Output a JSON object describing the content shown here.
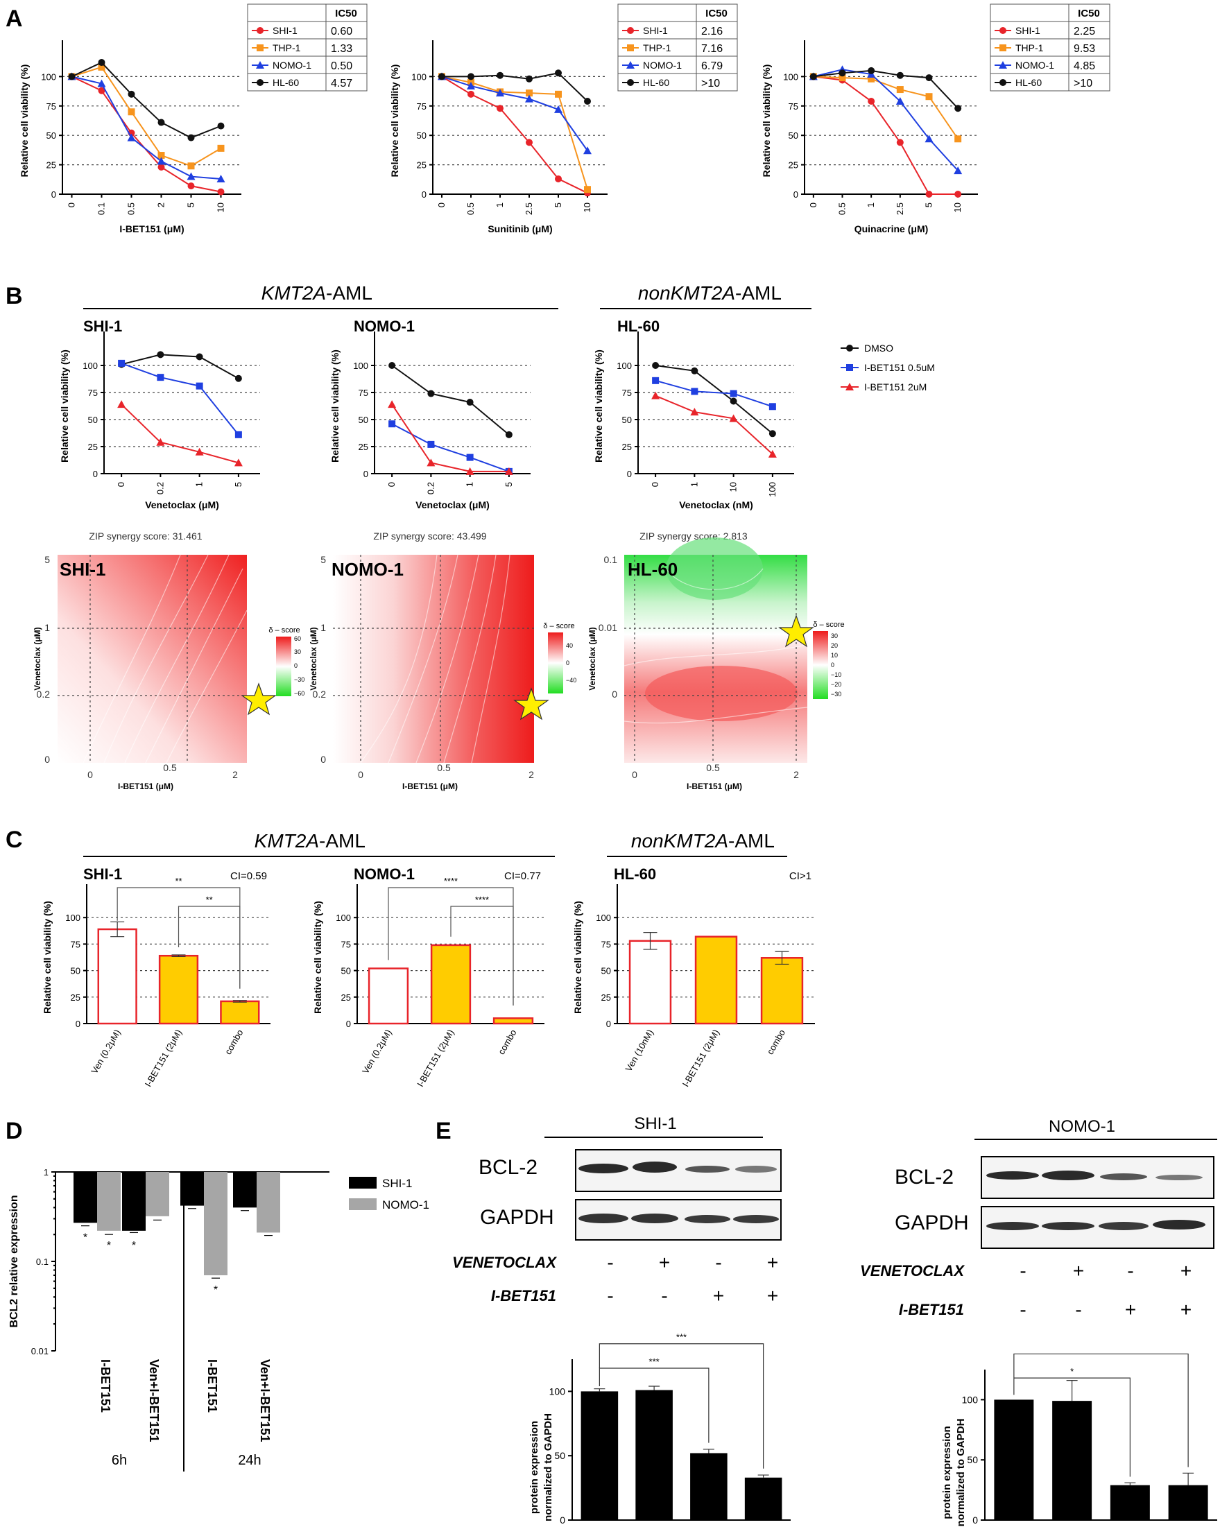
{
  "panels": {
    "a": "A",
    "b": "B",
    "c": "C",
    "d": "D",
    "e": "E"
  },
  "groups": {
    "kmt2a_pre": "KMT2A",
    "kmt2a_suf": "-AML",
    "non_pre": "nonKMT2A",
    "non_suf": "-AML"
  },
  "colors": {
    "shi1": "#e8242a",
    "thp1": "#f7941d",
    "nomo1": "#1f3fe0",
    "hl60": "#111111",
    "ven_bar": "#ffffff",
    "ibet_bar": "#ffcc00",
    "bar_edge": "#e8242a",
    "d_shi": "#000000",
    "d_nomo": "#a6a6a6"
  },
  "ylabel_viab": "Relative cell viability (%)",
  "zip": {
    "label": "ZIP synergy score:",
    "shi1": "31.461",
    "nomo1": "43.499",
    "hl60": "2.813",
    "delta": "δ – score",
    "vaxis": "Venetoclax (μM)",
    "iaxis": "I-BET151 (μM)"
  },
  "chart_data": [
    {
      "id": "A1",
      "type": "line",
      "xlabel": "I-BET151 (μM)",
      "ylabel": "Relative cell viability (%)",
      "categories": [
        "0",
        "0.1",
        "0.5",
        "2",
        "5",
        "10"
      ],
      "ylim": [
        0,
        125
      ],
      "series": [
        {
          "name": "SHI-1",
          "ic50": "0.60",
          "values": [
            100,
            88,
            52,
            23,
            7,
            2
          ]
        },
        {
          "name": "THP-1",
          "ic50": "1.33",
          "values": [
            100,
            108,
            70,
            33,
            24,
            39
          ]
        },
        {
          "name": "NOMO-1",
          "ic50": "0.50",
          "values": [
            100,
            94,
            48,
            28,
            15,
            13
          ]
        },
        {
          "name": "HL-60",
          "ic50": "4.57",
          "values": [
            100,
            112,
            85,
            61,
            48,
            58
          ]
        }
      ]
    },
    {
      "id": "A2",
      "type": "line",
      "xlabel": "Sunitinib (μM)",
      "ylabel": "Relative cell viability (%)",
      "categories": [
        "0",
        "0.5",
        "1",
        "2.5",
        "5",
        "10"
      ],
      "ylim": [
        0,
        125
      ],
      "series": [
        {
          "name": "SHI-1",
          "ic50": "2.16",
          "values": [
            100,
            85,
            73,
            44,
            13,
            1
          ]
        },
        {
          "name": "THP-1",
          "ic50": "7.16",
          "values": [
            100,
            95,
            87,
            86,
            85,
            4
          ]
        },
        {
          "name": "NOMO-1",
          "ic50": "6.79",
          "values": [
            100,
            92,
            86,
            81,
            72,
            37
          ]
        },
        {
          "name": "HL-60",
          "ic50": ">10",
          "values": [
            100,
            100,
            101,
            98,
            103,
            79
          ]
        }
      ]
    },
    {
      "id": "A3",
      "type": "line",
      "xlabel": "Quinacrine (μM)",
      "ylabel": "Relative cell viability (%)",
      "categories": [
        "0",
        "0.5",
        "1",
        "2.5",
        "5",
        "10"
      ],
      "ylim": [
        0,
        125
      ],
      "series": [
        {
          "name": "SHI-1",
          "ic50": "2.25",
          "values": [
            100,
            97,
            79,
            44,
            0,
            0
          ]
        },
        {
          "name": "THP-1",
          "ic50": "9.53",
          "values": [
            100,
            99,
            98,
            89,
            83,
            47
          ]
        },
        {
          "name": "NOMO-1",
          "ic50": "4.85",
          "values": [
            100,
            106,
            102,
            79,
            47,
            20
          ]
        },
        {
          "name": "HL-60",
          "ic50": ">10",
          "values": [
            100,
            103,
            105,
            101,
            99,
            73
          ]
        }
      ]
    },
    {
      "id": "B1",
      "type": "line",
      "title": "SHI-1",
      "xlabel": "Venetoclax (μM)",
      "ylabel": "Relative cell viability (%)",
      "categories": [
        "0",
        "0.2",
        "1",
        "5"
      ],
      "ylim": [
        0,
        125
      ],
      "series": [
        {
          "name": "DMSO",
          "values": [
            101,
            110,
            108,
            88
          ]
        },
        {
          "name": "I-BET151 0.5uM",
          "values": [
            102,
            89,
            81,
            36
          ]
        },
        {
          "name": "I-BET151 2uM",
          "values": [
            64,
            29,
            20,
            10
          ]
        }
      ]
    },
    {
      "id": "B2",
      "type": "line",
      "title": "NOMO-1",
      "xlabel": "Venetoclax (μM)",
      "ylabel": "Relative cell viability (%)",
      "categories": [
        "0",
        "0.2",
        "1",
        "5"
      ],
      "ylim": [
        0,
        125
      ],
      "series": [
        {
          "name": "DMSO",
          "values": [
            100,
            74,
            66,
            36
          ]
        },
        {
          "name": "I-BET151 0.5uM",
          "values": [
            46,
            27,
            15,
            2
          ]
        },
        {
          "name": "I-BET151 2uM",
          "values": [
            64,
            10,
            2,
            2
          ]
        }
      ]
    },
    {
      "id": "B3",
      "type": "line",
      "title": "HL-60",
      "xlabel": "Venetoclax (nM)",
      "ylabel": "Relative cell viability (%)",
      "categories": [
        "0",
        "1",
        "10",
        "100"
      ],
      "ylim": [
        0,
        125
      ],
      "series": [
        {
          "name": "DMSO",
          "values": [
            100,
            95,
            67,
            37
          ]
        },
        {
          "name": "I-BET151 0.5uM",
          "values": [
            86,
            76,
            74,
            62
          ]
        },
        {
          "name": "I-BET151 2uM",
          "values": [
            72,
            57,
            51,
            18
          ]
        }
      ]
    },
    {
      "id": "C1",
      "type": "bar",
      "title": "SHI-1",
      "ci": "CI=0.59",
      "ylabel": "Relative cell viability (%)",
      "categories": [
        "Ven (0.2μM)",
        "I-BET151 (2μM)",
        "combo"
      ],
      "values": [
        89,
        64,
        21
      ],
      "ylim": [
        0,
        125
      ],
      "sig": [
        "**",
        "**"
      ]
    },
    {
      "id": "C2",
      "type": "bar",
      "title": "NOMO-1",
      "ci": "CI=0.77",
      "ylabel": "Relative cell viability (%)",
      "categories": [
        "Ven (0.2μM)",
        "I-BET151 (2μM)",
        "combo"
      ],
      "values": [
        52,
        74,
        5
      ],
      "ylim": [
        0,
        125
      ],
      "sig": [
        "****",
        "****"
      ]
    },
    {
      "id": "C3",
      "type": "bar",
      "title": "HL-60",
      "ci": "CI>1",
      "ylabel": "Relative cell viability (%)",
      "categories": [
        "Ven (10nM)",
        "I-BET151 (2μM)",
        "combo"
      ],
      "values": [
        78,
        82,
        62
      ],
      "ylim": [
        0,
        125
      ]
    },
    {
      "id": "D",
      "type": "bar",
      "ylabel": "BCL2 relative expression",
      "yscale": "log",
      "ylim": [
        0.01,
        1
      ],
      "yticks": [
        "1",
        "0.1",
        "0.01"
      ],
      "categories": [
        "I-BET151",
        "Ven+I-BET151",
        "I-BET151",
        "Ven+I-BET151"
      ],
      "groups": [
        "6h",
        "24h"
      ],
      "series": [
        {
          "name": "SHI-1",
          "values": [
            0.27,
            0.22,
            0.42,
            0.4
          ]
        },
        {
          "name": "NOMO-1",
          "values": [
            0.22,
            0.32,
            0.07,
            0.21
          ]
        }
      ],
      "sig": [
        "*",
        "*",
        "*",
        "",
        "",
        "*",
        "",
        ""
      ]
    },
    {
      "id": "E1",
      "type": "bar",
      "title": "SHI-1",
      "ylabel": "protein expression normalized to GAPDH",
      "values": [
        100,
        101,
        52,
        33
      ],
      "ylim": [
        0,
        125
      ],
      "sig": [
        "***",
        "***"
      ]
    },
    {
      "id": "E2",
      "type": "bar",
      "title": "NOMO-1",
      "ylabel": "protein expression normalized to GAPDH",
      "values": [
        100,
        99,
        29,
        29
      ],
      "ylim": [
        0,
        125
      ],
      "sig": [
        "*"
      ]
    }
  ],
  "western": {
    "bcl2": "BCL-2",
    "gapdh": "GAPDH",
    "ven": "VENETOCLAX",
    "ibet": "I-BET151",
    "ven_signs": [
      "-",
      "+",
      "-",
      "+"
    ],
    "ibet_signs": [
      "-",
      "-",
      "+",
      "+"
    ]
  },
  "hm_ticks": {
    "v_shi": [
      "5",
      "1",
      "0.2",
      "0"
    ],
    "v_nomo": [
      "5",
      "1",
      "0.2",
      "0"
    ],
    "v_hl": [
      "0.1",
      "0.01",
      "0"
    ],
    "i": [
      "0",
      "0.5",
      "2"
    ],
    "leg_shi": [
      "60",
      "30",
      "0",
      "−30",
      "−60"
    ],
    "leg_nomo": [
      "40",
      "0",
      "−40"
    ],
    "leg_hl": [
      "30",
      "20",
      "10",
      "0",
      "−10",
      "−20",
      "−30"
    ]
  },
  "d_labels": {
    "t6": "6h",
    "t24": "24h"
  }
}
